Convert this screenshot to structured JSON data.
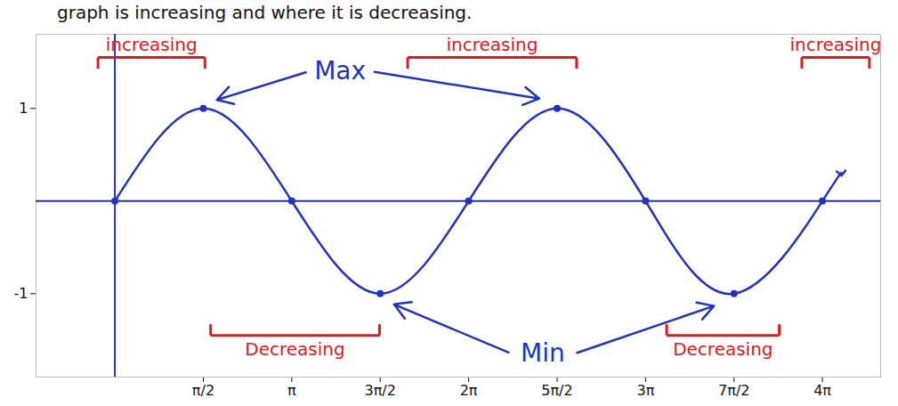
{
  "chart_data": {
    "type": "line",
    "title": "graph is increasing and where it is decreasing.",
    "x": [
      0,
      1.571,
      3.142,
      4.712,
      6.283,
      7.854,
      9.425,
      10.996,
      12.566,
      12.9
    ],
    "values": [
      0,
      1,
      0,
      -1,
      0,
      1,
      0,
      -1,
      0,
      0.3
    ],
    "color": "#2233bb",
    "marker": "dot",
    "grid": false,
    "xlim": [
      -1.4,
      13.6
    ],
    "ylim": [
      -1.9,
      1.8
    ],
    "xticks": [
      {
        "value": 1.571,
        "label": "π/2"
      },
      {
        "value": 3.142,
        "label": "π"
      },
      {
        "value": 4.712,
        "label": "3π/2"
      },
      {
        "value": 6.283,
        "label": "2π"
      },
      {
        "value": 7.854,
        "label": "5π/2"
      },
      {
        "value": 9.425,
        "label": "3π"
      },
      {
        "value": 10.996,
        "label": "7π/2"
      },
      {
        "value": 12.566,
        "label": "4π"
      }
    ],
    "yticks": [
      -1,
      1
    ],
    "annotations": [
      {
        "text": "increasing",
        "color": "#e0191f",
        "x": [
          -0.3,
          1.6
        ],
        "y": 1.55
      },
      {
        "text": "increasing",
        "color": "#e0191f",
        "x": [
          5.2,
          8.2
        ],
        "y": 1.55
      },
      {
        "text": "increasing",
        "color": "#e0191f",
        "x": [
          12.2,
          13.4
        ],
        "y": 1.55
      },
      {
        "text": "Decreasing",
        "color": "#e0191f",
        "x": [
          1.7,
          4.7
        ],
        "y": -1.45
      },
      {
        "text": "Decreasing",
        "color": "#e0191f",
        "x": [
          9.8,
          11.8
        ],
        "y": -1.45
      },
      {
        "text": "Max",
        "color": "#2233bb",
        "x": 4.0,
        "y": 1.4,
        "arrows": [
          [
            1.75,
            1.08
          ],
          [
            7.6,
            1.1
          ]
        ]
      },
      {
        "text": "Min",
        "color": "#2233bb",
        "x": 7.6,
        "y": -1.65,
        "arrows": [
          [
            4.9,
            -1.1
          ],
          [
            10.7,
            -1.12
          ]
        ]
      }
    ]
  }
}
